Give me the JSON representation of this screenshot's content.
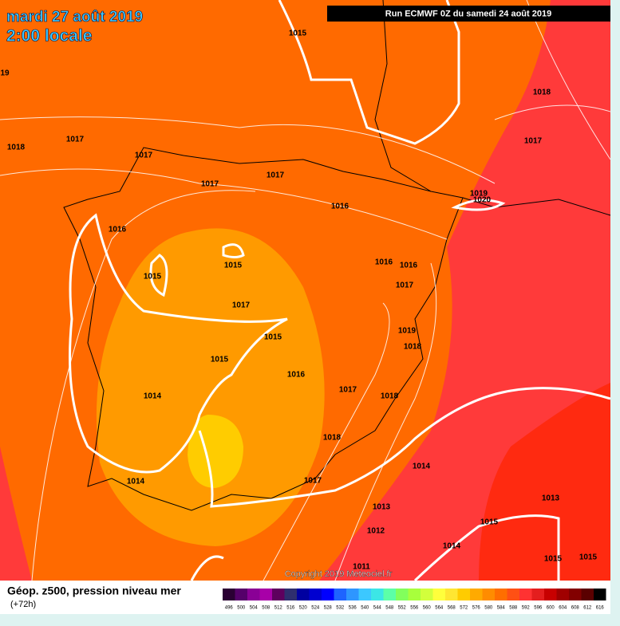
{
  "header": {
    "date": "mardi 27 août 2019",
    "time": "2:00 locale",
    "run": "Run ECMWF 0Z du samedi 24 août 2019"
  },
  "isobar_labels": [
    "1015",
    "19",
    "1018",
    "1018",
    "1017",
    "1017",
    "1017",
    "1017",
    "1017",
    "1019",
    "1020",
    "1016",
    "1016",
    "1015",
    "1015",
    "1016",
    "1016",
    "1017",
    "1017",
    "1019",
    "1018",
    "1015",
    "1015",
    "1016",
    "1014",
    "1017",
    "1018",
    "1018",
    "1014",
    "1014",
    "1017",
    "1013",
    "1013",
    "1015",
    "1012",
    "1014",
    "1011",
    "1015",
    "1015"
  ],
  "copyright": "Copyright 2019 Meteociel.fr",
  "footer": {
    "title": "Géop. z500, pression niveau mer",
    "lead": "(+72h)"
  },
  "scale": {
    "values": [
      496,
      500,
      504,
      508,
      512,
      516,
      520,
      524,
      528,
      532,
      536,
      540,
      544,
      548,
      552,
      556,
      560,
      564,
      568,
      572,
      576,
      580,
      584,
      588,
      592,
      596,
      600,
      604,
      608,
      612,
      616
    ],
    "colors": [
      "#2a0033",
      "#55006a",
      "#8a0096",
      "#a800a8",
      "#5e005e",
      "#2e2e6e",
      "#0000a0",
      "#0000d0",
      "#0000ff",
      "#1e64ff",
      "#2e96ff",
      "#3cc8ff",
      "#3ce6e6",
      "#5cffa8",
      "#82ff5c",
      "#a8ff3c",
      "#d2ff3c",
      "#ffff3c",
      "#ffe632",
      "#ffcc00",
      "#ffaa00",
      "#ff8c00",
      "#ff6e00",
      "#ff5014",
      "#ff3232",
      "#e41e1e",
      "#c80000",
      "#a00000",
      "#820000",
      "#5a0000",
      "#000000"
    ]
  }
}
